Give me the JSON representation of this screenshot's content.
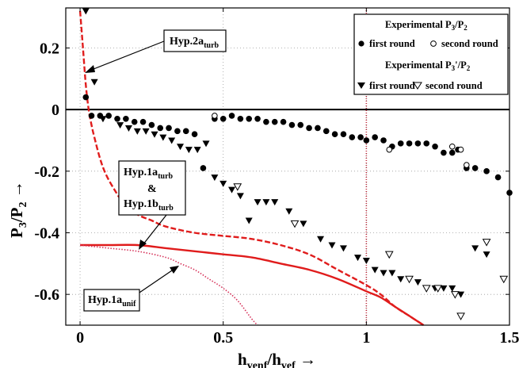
{
  "chart_data": {
    "type": "scatter",
    "xlabel": "h_venf/h_vef →",
    "ylabel": "P_3/P_2 →",
    "xlim": [
      -0.05,
      1.5
    ],
    "ylim": [
      -0.7,
      0.33
    ],
    "x_ticks": [
      0,
      0.5,
      1,
      1.5
    ],
    "x_tick_labels": [
      "0",
      "0.5",
      "1",
      "1.5"
    ],
    "y_ticks": [
      0.2,
      0,
      -0.2,
      -0.4,
      -0.6
    ],
    "y_tick_labels": [
      "0.2",
      "0",
      "-0.2",
      "-0.4",
      "-0.6"
    ],
    "grid": true,
    "legend_position": "top-right",
    "legend": {
      "group1_title": "Experimental P3/P2",
      "group1_items": [
        "first round",
        "second round"
      ],
      "group2_title": "Experimental P3'/P2",
      "group2_items": [
        "first round",
        "second round"
      ]
    },
    "annotations": [
      {
        "text": "Hyp.2a_turb"
      },
      {
        "text_lines": [
          "Hyp.1a_turb",
          "&",
          "Hyp.1b_turb"
        ]
      },
      {
        "text": "Hyp.1a_unif"
      }
    ],
    "reference_lines": [
      {
        "orientation": "horizontal",
        "value": 0,
        "color": "#000000"
      },
      {
        "orientation": "vertical",
        "value": 1,
        "color": "#c0283a",
        "style": "dotted"
      }
    ],
    "series": [
      {
        "name": "Experimental P3/P2 first round",
        "marker": "filled-circle",
        "x": [
          0.02,
          0.04,
          0.07,
          0.1,
          0.13,
          0.16,
          0.19,
          0.22,
          0.25,
          0.28,
          0.31,
          0.34,
          0.37,
          0.4,
          0.43,
          0.47,
          0.5,
          0.53,
          0.56,
          0.59,
          0.62,
          0.65,
          0.68,
          0.71,
          0.74,
          0.77,
          0.8,
          0.83,
          0.86,
          0.89,
          0.92,
          0.95,
          0.98,
          1.0,
          1.03,
          1.06,
          1.09,
          1.12,
          1.15,
          1.18,
          1.21,
          1.24,
          1.27,
          1.3,
          1.32,
          1.35,
          1.38,
          1.42,
          1.46,
          1.5
        ],
        "y": [
          0.04,
          -0.02,
          -0.02,
          -0.02,
          -0.03,
          -0.03,
          -0.04,
          -0.04,
          -0.05,
          -0.06,
          -0.06,
          -0.07,
          -0.07,
          -0.08,
          -0.19,
          -0.03,
          -0.03,
          -0.02,
          -0.03,
          -0.03,
          -0.03,
          -0.04,
          -0.04,
          -0.04,
          -0.05,
          -0.05,
          -0.06,
          -0.06,
          -0.07,
          -0.08,
          -0.08,
          -0.09,
          -0.09,
          -0.1,
          -0.09,
          -0.1,
          -0.12,
          -0.11,
          -0.11,
          -0.11,
          -0.11,
          -0.12,
          -0.14,
          -0.14,
          -0.13,
          -0.19,
          -0.19,
          -0.2,
          -0.22,
          -0.27
        ]
      },
      {
        "name": "Experimental P3/P2 second round",
        "marker": "open-circle",
        "x": [
          0.47,
          1.08,
          1.3,
          1.33,
          1.35
        ],
        "y": [
          -0.02,
          -0.13,
          -0.12,
          -0.13,
          -0.18
        ]
      },
      {
        "name": "Experimental P3'/P2 first round",
        "marker": "filled-triangle-down",
        "x": [
          0.02,
          0.05,
          0.08,
          0.14,
          0.17,
          0.2,
          0.23,
          0.26,
          0.29,
          0.32,
          0.35,
          0.38,
          0.41,
          0.44,
          0.47,
          0.5,
          0.53,
          0.56,
          0.59,
          0.62,
          0.65,
          0.68,
          0.73,
          0.78,
          0.84,
          0.88,
          0.92,
          0.97,
          1.0,
          1.03,
          1.06,
          1.09,
          1.12,
          1.15,
          1.18,
          1.21,
          1.24,
          1.27,
          1.3,
          1.33,
          1.38,
          1.42,
          1.48
        ],
        "y": [
          0.32,
          0.09,
          -0.03,
          -0.05,
          -0.06,
          -0.07,
          -0.07,
          -0.08,
          -0.09,
          -0.1,
          -0.12,
          -0.13,
          -0.13,
          -0.11,
          -0.22,
          -0.24,
          -0.26,
          -0.28,
          -0.36,
          -0.3,
          -0.3,
          -0.3,
          -0.33,
          -0.37,
          -0.42,
          -0.44,
          -0.45,
          -0.48,
          -0.49,
          -0.52,
          -0.53,
          -0.53,
          -0.55,
          -0.55,
          -0.56,
          -0.58,
          -0.58,
          -0.58,
          -0.58,
          -0.6,
          -0.45,
          -0.47,
          -0.55
        ]
      },
      {
        "name": "Experimental P3'/P2 second round",
        "marker": "open-triangle-down",
        "x": [
          0.55,
          0.75,
          1.08,
          1.15,
          1.21,
          1.25,
          1.31,
          1.33,
          1.42,
          1.48
        ],
        "y": [
          -0.25,
          -0.37,
          -0.47,
          -0.55,
          -0.58,
          -0.58,
          -0.6,
          -0.67,
          -0.43,
          -0.55
        ]
      },
      {
        "name": "Hyp.2a_turb",
        "style": "dashed",
        "color": "#e01c1c",
        "x": [
          0.0,
          0.01,
          0.02,
          0.03,
          0.04,
          0.05,
          0.07,
          0.09,
          0.12,
          0.15,
          0.2,
          0.25,
          0.3,
          0.4,
          0.5,
          0.6,
          0.7,
          0.8,
          0.9,
          1.0,
          1.05,
          1.1,
          1.15,
          1.2
        ],
        "y": [
          0.32,
          0.2,
          0.08,
          0.0,
          -0.05,
          -0.09,
          -0.16,
          -0.21,
          -0.26,
          -0.3,
          -0.34,
          -0.36,
          -0.38,
          -0.4,
          -0.41,
          -0.42,
          -0.44,
          -0.47,
          -0.52,
          -0.57,
          -0.6,
          -0.64,
          -0.67,
          -0.7
        ]
      },
      {
        "name": "Hyp.1a_turb & Hyp.1b_turb",
        "style": "solid",
        "color": "#e01c1c",
        "x": [
          0.0,
          0.1,
          0.2,
          0.3,
          0.4,
          0.5,
          0.6,
          0.7,
          0.8,
          0.9,
          1.0,
          1.05,
          1.1,
          1.15,
          1.2
        ],
        "y": [
          -0.44,
          -0.44,
          -0.44,
          -0.45,
          -0.46,
          -0.47,
          -0.48,
          -0.5,
          -0.52,
          -0.55,
          -0.59,
          -0.61,
          -0.64,
          -0.67,
          -0.7
        ]
      },
      {
        "name": "Hyp.1a_unif",
        "style": "dotted",
        "color": "#d6335a",
        "x": [
          0.0,
          0.1,
          0.2,
          0.3,
          0.35,
          0.4,
          0.45,
          0.5,
          0.55,
          0.6,
          0.62
        ],
        "y": [
          -0.44,
          -0.45,
          -0.46,
          -0.48,
          -0.5,
          -0.52,
          -0.55,
          -0.58,
          -0.62,
          -0.68,
          -0.7
        ]
      }
    ]
  },
  "colors": {
    "curve_red": "#e01c1c",
    "vertical_ref": "#c0283a",
    "marker": "#000000",
    "grid": "#9a9a9a"
  }
}
